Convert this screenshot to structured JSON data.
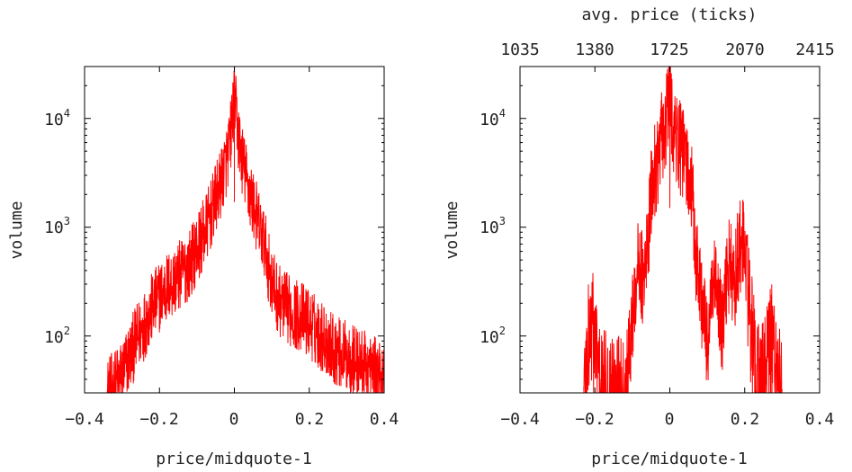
{
  "chart_data": [
    {
      "type": "line",
      "title": "",
      "xlabel": "price/midquote-1",
      "ylabel": "volume",
      "xlim": [
        -0.4,
        0.4
      ],
      "ylim": [
        30,
        30000
      ],
      "yscale": "log",
      "grid": false,
      "x_ticks": [
        -0.4,
        -0.2,
        0,
        0.2,
        0.4
      ],
      "x_tick_labels": [
        "−0.4",
        "−0.2",
        "0",
        "0.2",
        "0.4"
      ],
      "y_ticks": [
        100,
        1000,
        10000
      ],
      "y_tick_labels": [
        {
          "base": "10",
          "exp": "2"
        },
        {
          "base": "10",
          "exp": "3"
        },
        {
          "base": "10",
          "exp": "4"
        }
      ],
      "series": [
        {
          "color": "#ff0000",
          "envelope": {
            "x": [
              -0.34,
              -0.32,
              -0.3,
              -0.28,
              -0.26,
              -0.24,
              -0.22,
              -0.2,
              -0.18,
              -0.16,
              -0.14,
              -0.12,
              -0.1,
              -0.08,
              -0.06,
              -0.04,
              -0.02,
              -0.01,
              0,
              0.01,
              0.02,
              0.04,
              0.06,
              0.08,
              0.1,
              0.12,
              0.14,
              0.16,
              0.18,
              0.2,
              0.22,
              0.24,
              0.26,
              0.28,
              0.3,
              0.32,
              0.34,
              0.36,
              0.38,
              0.4
            ],
            "y": [
              30,
              35,
              45,
              65,
              95,
              130,
              180,
              230,
              280,
              320,
              380,
              460,
              640,
              900,
              1400,
              2300,
              4200,
              7000,
              16000,
              7000,
              4200,
              2100,
              1200,
              700,
              300,
              210,
              180,
              160,
              150,
              130,
              110,
              95,
              80,
              70,
              65,
              60,
              55,
              50,
              45,
              42
            ]
          },
          "noise": 0.33,
          "center_dip": 1700
        }
      ]
    },
    {
      "type": "line",
      "title": "",
      "xlabel": "price/midquote-1",
      "ylabel": "volume",
      "x2label": "avg. price (ticks)",
      "x2_tick_labels": [
        "1035",
        "1380",
        "1725",
        "2070",
        "2415"
      ],
      "xlim": [
        -0.4,
        0.4
      ],
      "ylim": [
        30,
        30000
      ],
      "yscale": "log",
      "grid": false,
      "x_ticks": [
        -0.4,
        -0.2,
        0,
        0.2,
        0.4
      ],
      "x_tick_labels": [
        "−0.4",
        "−0.2",
        "0",
        "0.2",
        "0.4"
      ],
      "y_ticks": [
        100,
        1000,
        10000
      ],
      "y_tick_labels": [
        {
          "base": "10",
          "exp": "2"
        },
        {
          "base": "10",
          "exp": "3"
        },
        {
          "base": "10",
          "exp": "4"
        }
      ],
      "series": [
        {
          "color": "#ff0000",
          "envelope": {
            "x": [
              -0.23,
              -0.22,
              -0.21,
              -0.2,
              -0.19,
              -0.18,
              -0.12,
              -0.11,
              -0.1,
              -0.09,
              -0.08,
              -0.07,
              -0.06,
              -0.05,
              -0.04,
              -0.03,
              -0.02,
              -0.01,
              0,
              0.01,
              0.02,
              0.03,
              0.04,
              0.05,
              0.06,
              0.07,
              0.08,
              0.09,
              0.1,
              0.11,
              0.12,
              0.13,
              0.14,
              0.15,
              0.16,
              0.17,
              0.18,
              0.19,
              0.2,
              0.21,
              0.22,
              0.23,
              0.24,
              0.25,
              0.26,
              0.27,
              0.28,
              0.29,
              0.3
            ],
            "y": [
              30,
              70,
              130,
              90,
              40,
              30,
              30,
              60,
              150,
              350,
              500,
              250,
              700,
              1800,
              3500,
              4500,
              7000,
              9000,
              17000,
              8000,
              6000,
              5000,
              4000,
              3000,
              1800,
              500,
              300,
              150,
              80,
              200,
              280,
              200,
              100,
              300,
              500,
              250,
              500,
              700,
              600,
              250,
              80,
              40,
              35,
              40,
              60,
              80,
              70,
              40,
              30
            ]
          },
          "noise": 0.45,
          "center_dip": 1500,
          "dense_range": [
            -0.12,
            0.2
          ]
        }
      ]
    }
  ]
}
